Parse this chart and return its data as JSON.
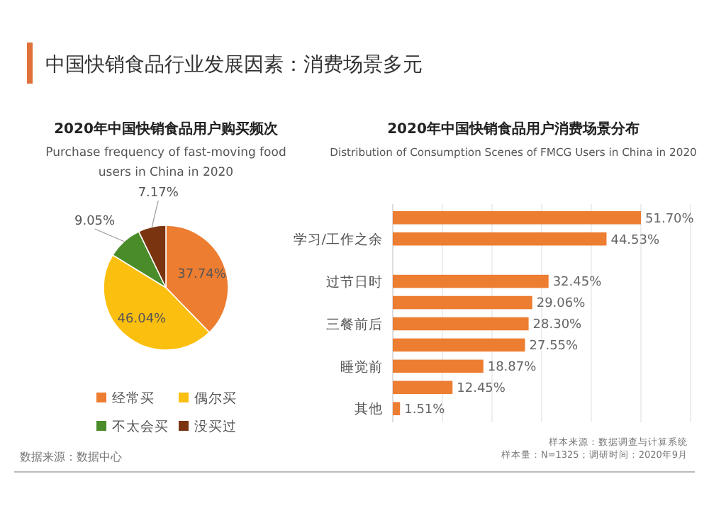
{
  "chart_data": [
    {
      "type": "pie",
      "title": "2020年中国快销食品用户购买频次",
      "subtitle": "Purchase frequency of fast-moving food users in China in 2020",
      "categories": [
        "经常买",
        "偶尔买",
        "不太会买",
        "没买过"
      ],
      "values": [
        37.74,
        46.04,
        9.05,
        7.17
      ],
      "colors": [
        "#ed7d31",
        "#fbbf10",
        "#4a8c2a",
        "#7a3410"
      ],
      "value_labels": [
        "37.74%",
        "46.04%",
        "9.05%",
        "7.17%"
      ],
      "legend": "bottom",
      "annotations": [
        "中国快销食品行业发展因素：消费场景多元",
        "数据来源：数据中心"
      ]
    },
    {
      "type": "bar",
      "orientation": "horizontal",
      "title": "2020年中国快销食品用户消费场景分布",
      "subtitle": "Distribution of Consumption Scenes of FMCG Users in China in 2020",
      "categories": [
        null,
        "学习/工作之余",
        null,
        "过节日时",
        null,
        "三餐前后",
        null,
        "睡觉前",
        null,
        "其他"
      ],
      "values": [
        51.7,
        44.53,
        null,
        32.45,
        29.06,
        28.3,
        27.55,
        18.87,
        12.45,
        1.51
      ],
      "color": "#ed7d31",
      "value_labels": [
        "51.70%",
        "44.53%",
        null,
        "32.45%",
        "29.06%",
        "28.30%",
        "27.55%",
        "18.87%",
        "12.45%",
        "1.51%"
      ],
      "annotations": [
        "样本来源：数据调查与计算系统",
        "样本量：N=1325；调研时间：2020年9月"
      ]
    }
  ]
}
